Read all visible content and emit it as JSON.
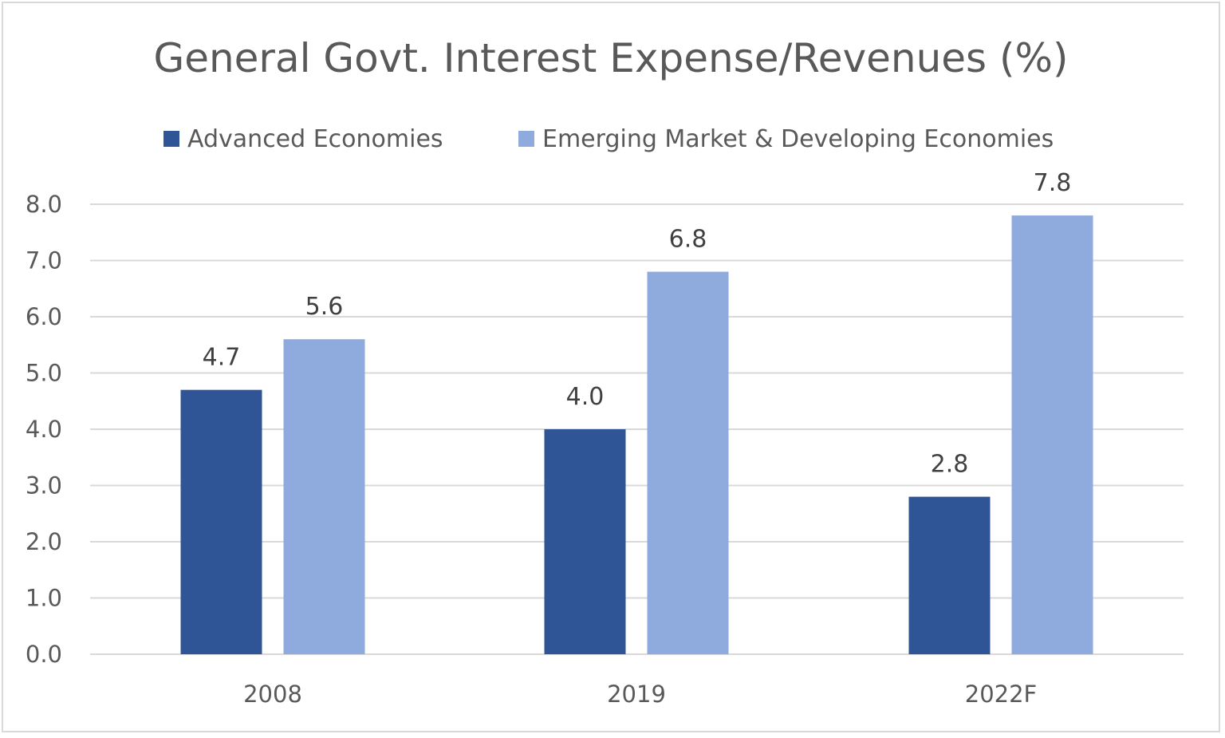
{
  "chart_data": {
    "type": "bar",
    "title": "General Govt. Interest Expense/Revenues (%)",
    "categories": [
      "2008",
      "2019",
      "2022F"
    ],
    "series": [
      {
        "name": "Advanced Economies",
        "color": "#2f5597",
        "values": [
          4.7,
          4.0,
          2.8
        ],
        "labels": [
          "4.7",
          "4.0",
          "2.8"
        ]
      },
      {
        "name": "Emerging Market & Developing Economies",
        "color": "#8faadc",
        "values": [
          5.6,
          6.8,
          7.8
        ],
        "labels": [
          "5.6",
          "6.8",
          "7.8"
        ]
      }
    ],
    "ylim": [
      0,
      8
    ],
    "yticks": [
      "0.0",
      "1.0",
      "2.0",
      "3.0",
      "4.0",
      "5.0",
      "6.0",
      "7.0",
      "8.0"
    ],
    "xlabel": "",
    "ylabel": "",
    "grid": true,
    "legend_position": "top"
  }
}
